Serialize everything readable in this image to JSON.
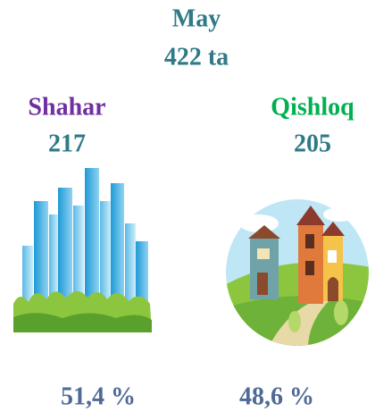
{
  "header": {
    "title": "May",
    "total": "422 ta"
  },
  "groups": [
    {
      "name": "Shahar",
      "count": 217,
      "share": "51,4 %"
    },
    {
      "name": "Qishloq",
      "count": 205,
      "share": "48,6 %"
    }
  ]
}
